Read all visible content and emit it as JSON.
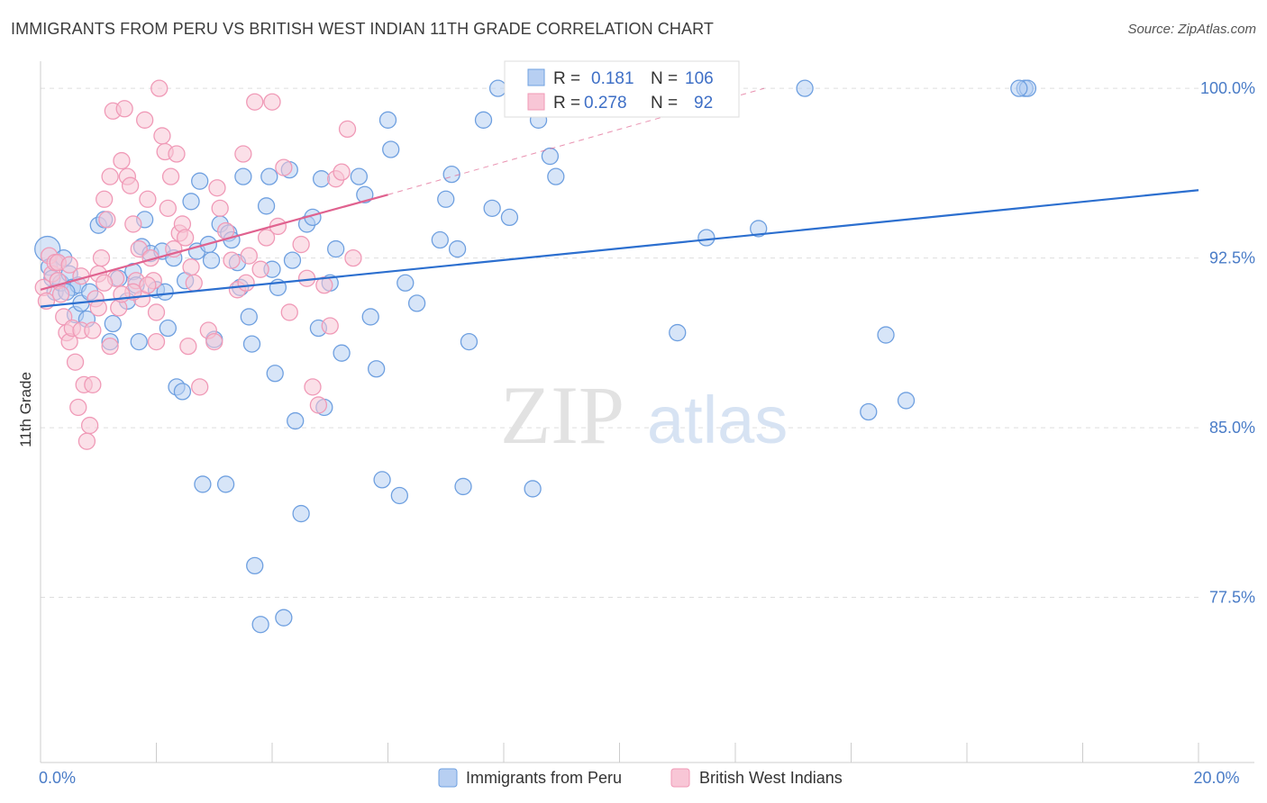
{
  "title": "IMMIGRANTS FROM PERU VS BRITISH WEST INDIAN 11TH GRADE CORRELATION CHART",
  "source": "Source: ZipAtlas.com",
  "watermark": {
    "zip": "ZIP",
    "atlas": "atlas"
  },
  "chart_data": {
    "type": "scatter",
    "title": "IMMIGRANTS FROM PERU VS BRITISH WEST INDIAN 11TH GRADE CORRELATION CHART",
    "xlabel": "",
    "ylabel": "11th Grade",
    "xlim": [
      0,
      20
    ],
    "ylim": [
      70.2,
      101.2
    ],
    "x_tick_labels": [
      {
        "value": 0,
        "label": "0.0%"
      },
      {
        "value": 20,
        "label": "20.0%"
      }
    ],
    "y_ticks": [
      {
        "value": 100.0,
        "label": "100.0%"
      },
      {
        "value": 92.5,
        "label": "92.5%"
      },
      {
        "value": 85.0,
        "label": "85.0%"
      },
      {
        "value": 77.5,
        "label": "77.5%"
      }
    ],
    "x_minor_ticks": [
      0,
      2,
      4,
      6,
      8,
      10,
      12,
      14,
      16,
      18,
      20
    ],
    "legend_stats": [
      {
        "r_label": "R =",
        "r_value": "0.181",
        "n_label": "N =",
        "n_value": "106"
      },
      {
        "r_label": "R =",
        "r_value": "0.278",
        "n_label": "N =",
        "n_value": "92"
      }
    ],
    "series": [
      {
        "name": "Immigrants from Peru",
        "color": "#6fa0e0",
        "fill": "#b7cff2",
        "trend_color": "#2c6fcf",
        "trend": {
          "x0": 0,
          "y0": 90.35,
          "x1": 20,
          "y1": 95.5,
          "dashed_to": null
        },
        "points": [
          [
            0.12,
            92.9
          ],
          [
            0.15,
            92.1
          ],
          [
            0.2,
            91.6
          ],
          [
            0.25,
            91.0
          ],
          [
            0.3,
            92.3
          ],
          [
            0.35,
            91.4
          ],
          [
            0.4,
            92.5
          ],
          [
            0.5,
            91.8
          ],
          [
            0.55,
            91.2
          ],
          [
            0.6,
            90.0
          ],
          [
            0.65,
            91.3
          ],
          [
            0.7,
            90.5
          ],
          [
            0.8,
            89.8
          ],
          [
            0.85,
            91.0
          ],
          [
            1.0,
            93.95
          ],
          [
            1.1,
            94.2
          ],
          [
            1.2,
            88.8
          ],
          [
            1.25,
            89.6
          ],
          [
            1.35,
            91.6
          ],
          [
            1.5,
            90.6
          ],
          [
            1.6,
            91.9
          ],
          [
            1.65,
            91.3
          ],
          [
            1.7,
            88.8
          ],
          [
            1.75,
            93.0
          ],
          [
            1.8,
            94.2
          ],
          [
            1.9,
            92.7
          ],
          [
            2.0,
            91.1
          ],
          [
            2.1,
            92.8
          ],
          [
            2.15,
            91.0
          ],
          [
            2.2,
            89.4
          ],
          [
            2.3,
            92.5
          ],
          [
            2.35,
            86.8
          ],
          [
            2.45,
            86.6
          ],
          [
            2.5,
            91.5
          ],
          [
            2.6,
            95.0
          ],
          [
            2.7,
            92.8
          ],
          [
            2.75,
            95.9
          ],
          [
            2.8,
            82.5
          ],
          [
            2.9,
            93.1
          ],
          [
            2.95,
            92.4
          ],
          [
            3.0,
            88.9
          ],
          [
            3.1,
            94.0
          ],
          [
            3.2,
            82.5
          ],
          [
            3.25,
            93.6
          ],
          [
            3.3,
            93.3
          ],
          [
            3.4,
            92.3
          ],
          [
            3.45,
            91.2
          ],
          [
            3.5,
            96.1
          ],
          [
            3.6,
            89.9
          ],
          [
            3.65,
            88.7
          ],
          [
            3.7,
            78.9
          ],
          [
            3.8,
            76.3
          ],
          [
            3.9,
            94.8
          ],
          [
            3.95,
            96.1
          ],
          [
            4.0,
            92.0
          ],
          [
            4.05,
            87.4
          ],
          [
            4.1,
            91.2
          ],
          [
            4.2,
            76.6
          ],
          [
            4.3,
            96.4
          ],
          [
            4.35,
            92.4
          ],
          [
            4.4,
            85.3
          ],
          [
            4.5,
            81.2
          ],
          [
            4.6,
            94.0
          ],
          [
            4.7,
            94.3
          ],
          [
            4.8,
            89.4
          ],
          [
            4.85,
            96.0
          ],
          [
            4.9,
            85.9
          ],
          [
            5.0,
            91.4
          ],
          [
            5.1,
            92.9
          ],
          [
            5.2,
            88.3
          ],
          [
            5.5,
            96.1
          ],
          [
            5.6,
            95.3
          ],
          [
            5.7,
            89.9
          ],
          [
            5.8,
            87.6
          ],
          [
            5.9,
            82.7
          ],
          [
            6.0,
            98.6
          ],
          [
            6.05,
            97.3
          ],
          [
            6.2,
            82.0
          ],
          [
            6.3,
            91.4
          ],
          [
            6.5,
            90.5
          ],
          [
            6.9,
            93.3
          ],
          [
            7.0,
            95.1
          ],
          [
            7.1,
            96.2
          ],
          [
            7.2,
            92.9
          ],
          [
            7.3,
            82.4
          ],
          [
            7.4,
            88.8
          ],
          [
            7.65,
            98.6
          ],
          [
            7.8,
            94.7
          ],
          [
            7.9,
            100.0
          ],
          [
            8.1,
            94.3
          ],
          [
            8.5,
            82.3
          ],
          [
            8.6,
            98.6
          ],
          [
            8.8,
            97.0
          ],
          [
            8.9,
            96.1
          ],
          [
            11.0,
            89.2
          ],
          [
            11.5,
            93.4
          ],
          [
            12.4,
            93.8
          ],
          [
            13.2,
            100.0
          ],
          [
            14.3,
            85.7
          ],
          [
            14.6,
            89.1
          ],
          [
            14.95,
            86.2
          ],
          [
            17.0,
            100.0
          ],
          [
            17.05,
            100.0
          ],
          [
            16.9,
            100.0
          ],
          [
            0.45,
            91.0
          ]
        ]
      },
      {
        "name": "British West Indians",
        "color": "#f09ab7",
        "fill": "#f8c6d6",
        "trend_color": "#e0628f",
        "trend": {
          "x0": 0,
          "y0": 91.1,
          "x1": 6.0,
          "y1": 95.3,
          "dashed_to": {
            "x": 12.5,
            "y": 100.0
          }
        },
        "points": [
          [
            0.05,
            91.2
          ],
          [
            0.1,
            90.6
          ],
          [
            0.15,
            92.6
          ],
          [
            0.2,
            91.8
          ],
          [
            0.25,
            92.3
          ],
          [
            0.3,
            91.5
          ],
          [
            0.35,
            90.9
          ],
          [
            0.4,
            89.9
          ],
          [
            0.45,
            89.2
          ],
          [
            0.5,
            88.8
          ],
          [
            0.55,
            89.4
          ],
          [
            0.6,
            87.9
          ],
          [
            0.65,
            85.9
          ],
          [
            0.7,
            89.3
          ],
          [
            0.75,
            86.9
          ],
          [
            0.8,
            84.4
          ],
          [
            0.85,
            85.1
          ],
          [
            0.9,
            86.9
          ],
          [
            0.95,
            90.7
          ],
          [
            1.0,
            91.8
          ],
          [
            1.05,
            92.5
          ],
          [
            1.1,
            95.1
          ],
          [
            1.15,
            94.2
          ],
          [
            1.2,
            96.1
          ],
          [
            1.25,
            99.0
          ],
          [
            1.3,
            91.6
          ],
          [
            1.35,
            90.3
          ],
          [
            1.4,
            96.8
          ],
          [
            1.45,
            99.1
          ],
          [
            1.5,
            96.1
          ],
          [
            1.55,
            95.7
          ],
          [
            1.6,
            94.0
          ],
          [
            1.65,
            91.5
          ],
          [
            1.7,
            92.9
          ],
          [
            1.75,
            90.7
          ],
          [
            1.8,
            98.6
          ],
          [
            1.85,
            95.1
          ],
          [
            1.9,
            92.5
          ],
          [
            1.95,
            91.5
          ],
          [
            2.0,
            90.1
          ],
          [
            2.05,
            100.0
          ],
          [
            2.1,
            97.9
          ],
          [
            2.15,
            97.2
          ],
          [
            2.2,
            94.7
          ],
          [
            2.25,
            96.1
          ],
          [
            2.3,
            92.9
          ],
          [
            2.35,
            97.1
          ],
          [
            2.4,
            93.6
          ],
          [
            2.45,
            94.0
          ],
          [
            2.5,
            93.4
          ],
          [
            2.55,
            88.6
          ],
          [
            2.6,
            92.1
          ],
          [
            2.65,
            91.4
          ],
          [
            2.75,
            86.8
          ],
          [
            2.9,
            89.3
          ],
          [
            3.0,
            88.8
          ],
          [
            3.05,
            95.6
          ],
          [
            3.1,
            94.7
          ],
          [
            3.2,
            93.7
          ],
          [
            3.3,
            92.4
          ],
          [
            3.4,
            91.1
          ],
          [
            3.5,
            97.1
          ],
          [
            3.55,
            91.4
          ],
          [
            3.6,
            92.6
          ],
          [
            3.7,
            99.4
          ],
          [
            3.8,
            92.0
          ],
          [
            3.9,
            93.4
          ],
          [
            4.0,
            99.4
          ],
          [
            4.1,
            93.9
          ],
          [
            4.2,
            96.5
          ],
          [
            4.3,
            90.1
          ],
          [
            4.5,
            93.1
          ],
          [
            4.6,
            91.6
          ],
          [
            4.7,
            86.8
          ],
          [
            4.8,
            86.0
          ],
          [
            4.9,
            91.3
          ],
          [
            5.0,
            89.5
          ],
          [
            5.1,
            96.0
          ],
          [
            5.2,
            96.3
          ],
          [
            5.3,
            98.2
          ],
          [
            5.4,
            92.5
          ],
          [
            0.9,
            89.3
          ],
          [
            1.0,
            90.3
          ],
          [
            1.2,
            88.6
          ],
          [
            1.6,
            91.0
          ],
          [
            0.3,
            92.3
          ],
          [
            0.5,
            92.2
          ],
          [
            0.7,
            91.7
          ],
          [
            1.1,
            91.4
          ],
          [
            1.4,
            90.9
          ],
          [
            2.0,
            88.8
          ],
          [
            1.85,
            91.3
          ]
        ]
      }
    ]
  }
}
